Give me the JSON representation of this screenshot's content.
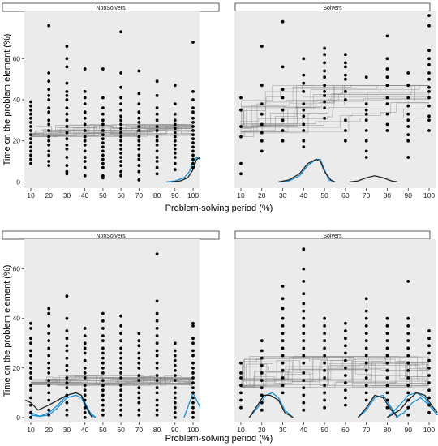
{
  "figure": {
    "y_axis_title": "Time on the problem element (%)",
    "x_axis_title": "Problem-solving period (%)"
  },
  "chart_data": [
    {
      "type": "scatter",
      "row": 1,
      "panel": "NonSolvers",
      "xlabel": "Problem-solving period (%)",
      "ylabel": "Time on the problem element (%)",
      "x_ticks": [
        10,
        20,
        30,
        40,
        50,
        60,
        70,
        80,
        90,
        100
      ],
      "y_ticks": [
        0,
        20,
        40,
        60
      ],
      "ylim": [
        -3,
        83
      ],
      "grid": false,
      "points": {
        "10": [
          39,
          37,
          35,
          33,
          31,
          29,
          27,
          25,
          23,
          21,
          19,
          17,
          15,
          13,
          11,
          9
        ],
        "20": [
          76,
          53,
          49,
          45,
          42,
          40,
          36,
          34,
          30,
          28,
          25,
          22,
          20,
          18,
          15,
          13,
          10,
          8
        ],
        "30": [
          66,
          60,
          56,
          48,
          44,
          42,
          40,
          36,
          33,
          30,
          27,
          24,
          21,
          18,
          16,
          12,
          8,
          5,
          4
        ],
        "40": [
          55,
          44,
          41,
          38,
          34,
          31,
          28,
          25,
          22,
          20,
          18,
          15,
          12,
          10,
          7,
          3
        ],
        "50": [
          55,
          41,
          36,
          33,
          30,
          28,
          25,
          23,
          21,
          19,
          17,
          15,
          13,
          11,
          9,
          7,
          3,
          2
        ],
        "60": [
          73,
          53,
          46,
          41,
          38,
          35,
          32,
          30,
          28,
          26,
          24,
          22,
          20,
          18,
          16,
          14,
          12,
          10,
          8,
          5,
          3
        ],
        "70": [
          54,
          43,
          38,
          34,
          31,
          29,
          27,
          25,
          22,
          20,
          18,
          16,
          13,
          11,
          8,
          5,
          1
        ],
        "80": [
          49,
          42,
          36,
          33,
          30,
          27,
          25,
          22,
          20,
          18,
          15,
          12,
          10,
          7,
          4
        ],
        "90": [
          47,
          38,
          33,
          30,
          28,
          26,
          24,
          22,
          20,
          18,
          16,
          14,
          12,
          9,
          6
        ],
        "100": [
          68,
          44,
          40,
          36,
          34,
          31,
          29,
          27,
          25,
          23,
          21,
          19,
          17,
          15,
          13,
          11,
          9,
          7
        ]
      },
      "step_band": [
        22,
        28
      ],
      "density_curves": [
        {
          "color": "#1a8fd6",
          "x": [
            85,
            90,
            95,
            98,
            100,
            102,
            104
          ],
          "y": [
            0,
            0.5,
            2,
            5,
            10,
            12,
            11
          ]
        },
        {
          "color": "#222222",
          "x": [
            88,
            93,
            97,
            100,
            102,
            104
          ],
          "y": [
            0,
            0.5,
            2,
            6,
            11,
            12
          ]
        }
      ]
    },
    {
      "type": "scatter",
      "row": 1,
      "panel": "Solvers",
      "xlabel": "Problem-solving period (%)",
      "x_ticks": [
        10,
        20,
        30,
        40,
        50,
        60,
        70,
        80,
        90,
        100
      ],
      "ylim": [
        -3,
        83
      ],
      "grid": false,
      "points": {
        "10": [
          41,
          35,
          27,
          22,
          9,
          4
        ],
        "20": [
          66,
          47,
          38,
          33,
          28,
          24,
          20,
          15
        ],
        "30": [
          78,
          56,
          45,
          41,
          35,
          30,
          25,
          20
        ],
        "40": [
          60,
          52,
          48,
          44,
          38,
          35,
          32,
          28,
          25,
          20,
          17
        ],
        "50": [
          65,
          62,
          58,
          54,
          51,
          47,
          44,
          42,
          39,
          36,
          31
        ],
        "60": [
          62,
          58,
          56,
          52,
          50,
          44,
          40,
          30,
          25,
          20
        ],
        "70": [
          51,
          38,
          35,
          33,
          30,
          25,
          20,
          15,
          12
        ],
        "80": [
          71,
          60,
          55,
          51,
          47,
          41,
          38,
          33,
          28,
          25
        ],
        "90": [
          53,
          47,
          41,
          37,
          33,
          30,
          27,
          23,
          20,
          12
        ],
        "100": [
          81,
          76,
          64,
          60,
          57,
          53,
          50,
          46,
          44,
          41,
          37,
          32,
          30,
          25
        ]
      },
      "step_band": [
        22,
        47
      ],
      "density_curves": [
        {
          "color": "#1a8fd6",
          "x": [
            28,
            33,
            38,
            42,
            46,
            48,
            50,
            52,
            55
          ],
          "y": [
            0,
            0.5,
            3,
            8,
            11,
            11,
            6,
            1,
            0
          ]
        },
        {
          "color": "#222222",
          "x": [
            28,
            33,
            38,
            42,
            46,
            48,
            50,
            53,
            55
          ],
          "y": [
            0,
            1,
            4,
            9,
            11,
            10,
            5,
            1,
            0
          ]
        },
        {
          "color": "#222222",
          "x": [
            62,
            66,
            70,
            74,
            78,
            82,
            85
          ],
          "y": [
            0,
            0.5,
            2,
            3,
            2,
            0.5,
            0
          ]
        }
      ]
    },
    {
      "type": "scatter",
      "row": 2,
      "panel": "NonSolvers",
      "xlabel": "Problem-solving period (%)",
      "ylabel": "Time on the problem element (%)",
      "x_ticks": [
        10,
        20,
        30,
        40,
        50,
        60,
        70,
        80,
        90,
        100
      ],
      "y_ticks": [
        0,
        20,
        40,
        60
      ],
      "ylim": [
        -2,
        72
      ],
      "grid": false,
      "points": {
        "10": [
          38,
          36,
          32,
          30,
          27,
          25,
          22,
          20,
          18,
          16,
          13,
          11,
          8,
          5,
          2,
          0
        ],
        "20": [
          44,
          42,
          37,
          34,
          31,
          28,
          25,
          22,
          20,
          18,
          15,
          13,
          10,
          7,
          3,
          1
        ],
        "30": [
          49,
          40,
          35,
          32,
          29,
          27,
          24,
          21,
          19,
          16,
          14,
          12,
          9,
          6,
          3,
          1
        ],
        "40": [
          36,
          33,
          30,
          28,
          26,
          23,
          20,
          18,
          16,
          13,
          11,
          9,
          7,
          4,
          2,
          0
        ],
        "50": [
          42,
          39,
          36,
          33,
          31,
          28,
          26,
          24,
          22,
          20,
          18,
          15,
          13,
          11,
          9,
          7,
          5,
          3,
          1
        ],
        "60": [
          41,
          37,
          34,
          31,
          28,
          26,
          24,
          22,
          20,
          18,
          16,
          13,
          11,
          9,
          7,
          5,
          3,
          1
        ],
        "70": [
          34,
          31,
          29,
          26,
          24,
          22,
          20,
          17,
          15,
          12,
          10,
          8,
          6,
          3,
          1
        ],
        "80": [
          66,
          47,
          42,
          39,
          36,
          33,
          30,
          27,
          25,
          22,
          20,
          17,
          15,
          12,
          10,
          7,
          5,
          3,
          1
        ],
        "90": [
          30,
          27,
          25,
          23,
          21,
          19,
          17,
          15,
          12,
          10,
          8,
          6,
          4,
          2,
          0
        ],
        "100": [
          38,
          37,
          32,
          30,
          27,
          25,
          22,
          20,
          18,
          16,
          14,
          12,
          10,
          8,
          6,
          4,
          2,
          0
        ]
      },
      "step_band": [
        13,
        21
      ],
      "density_curves": [
        {
          "color": "#1a8fd6",
          "x": [
            10,
            15,
            20,
            25,
            30,
            35,
            38,
            40,
            43,
            46
          ],
          "y": [
            1,
            0.5,
            2,
            5,
            9,
            10,
            9,
            6,
            2,
            0
          ]
        },
        {
          "color": "#1a8fd6",
          "x": [
            10,
            15,
            20,
            25,
            30,
            35,
            38,
            40,
            43,
            46
          ],
          "y": [
            2,
            0.5,
            1,
            4,
            8,
            9,
            8,
            5,
            1,
            0
          ]
        },
        {
          "color": "#222222",
          "x": [
            7,
            10,
            14,
            20,
            25,
            30,
            35,
            38,
            41,
            44
          ],
          "y": [
            7,
            6,
            3,
            5,
            7,
            9,
            10,
            9,
            4,
            0
          ]
        },
        {
          "color": "#1a8fd6",
          "x": [
            95,
            98,
            100,
            102,
            104
          ],
          "y": [
            0,
            6,
            10,
            7,
            4
          ]
        }
      ]
    },
    {
      "type": "scatter",
      "row": 2,
      "panel": "Solvers",
      "xlabel": "Problem-solving period (%)",
      "x_ticks": [
        10,
        20,
        30,
        40,
        50,
        60,
        70,
        80,
        90,
        100
      ],
      "ylim": [
        -2,
        72
      ],
      "grid": false,
      "points": {
        "10": [
          22,
          18,
          16,
          13,
          10,
          7,
          4
        ],
        "20": [
          31,
          27,
          24,
          21,
          18,
          15,
          12,
          9,
          6,
          3
        ],
        "30": [
          53,
          48,
          44,
          40,
          37,
          34,
          31,
          28,
          25,
          22,
          19,
          16,
          13,
          10
        ],
        "40": [
          68,
          60,
          55,
          50,
          46,
          43,
          40,
          37,
          34,
          31,
          28,
          25,
          22,
          18,
          15,
          12,
          9,
          6,
          3
        ],
        "50": [
          40,
          37,
          34,
          31,
          28,
          25,
          22,
          19,
          16,
          13,
          10,
          7,
          4
        ],
        "60": [
          38,
          35,
          32,
          29,
          26,
          23,
          20,
          17,
          14,
          11,
          8,
          5
        ],
        "70": [
          48,
          43,
          40,
          37,
          34,
          31,
          28,
          25,
          22,
          19,
          16,
          13,
          10,
          7
        ],
        "80": [
          40,
          37,
          34,
          31,
          28,
          25,
          22,
          19,
          16,
          13,
          10,
          7,
          4
        ],
        "90": [
          55,
          40,
          37,
          34,
          31,
          28,
          25,
          22,
          19,
          16,
          13,
          10,
          7,
          4,
          1
        ],
        "100": [
          35,
          32,
          29,
          26,
          23,
          20,
          17,
          14,
          11,
          8,
          5,
          2
        ]
      },
      "step_band": [
        12,
        25
      ],
      "density_curves": [
        {
          "color": "#1a8fd6",
          "x": [
            14,
            18,
            22,
            25,
            28,
            31,
            35
          ],
          "y": [
            0,
            4,
            9,
            10,
            8,
            3,
            0
          ]
        },
        {
          "color": "#222222",
          "x": [
            14,
            18,
            21,
            24,
            28,
            31,
            35
          ],
          "y": [
            0,
            5,
            9,
            9,
            7,
            2,
            0
          ]
        },
        {
          "color": "#1a8fd6",
          "x": [
            66,
            70,
            74,
            78,
            82,
            85
          ],
          "y": [
            0,
            3,
            8,
            9,
            4,
            0
          ]
        },
        {
          "color": "#222222",
          "x": [
            66,
            70,
            74,
            78,
            82,
            85
          ],
          "y": [
            0,
            4,
            9,
            8,
            3,
            0
          ]
        },
        {
          "color": "#1a8fd6",
          "x": [
            80,
            86,
            90,
            94,
            98,
            102,
            104
          ],
          "y": [
            0,
            5,
            9,
            10,
            8,
            3,
            1
          ]
        },
        {
          "color": "#222222",
          "x": [
            80,
            86,
            90,
            94,
            98,
            102,
            104
          ],
          "y": [
            0,
            3,
            7,
            10,
            9,
            4,
            2
          ]
        },
        {
          "color": "#1a8fd6",
          "x": [
            84,
            88,
            92,
            96,
            100,
            104
          ],
          "y": [
            0,
            2,
            6,
            8,
            5,
            1
          ]
        }
      ]
    }
  ]
}
